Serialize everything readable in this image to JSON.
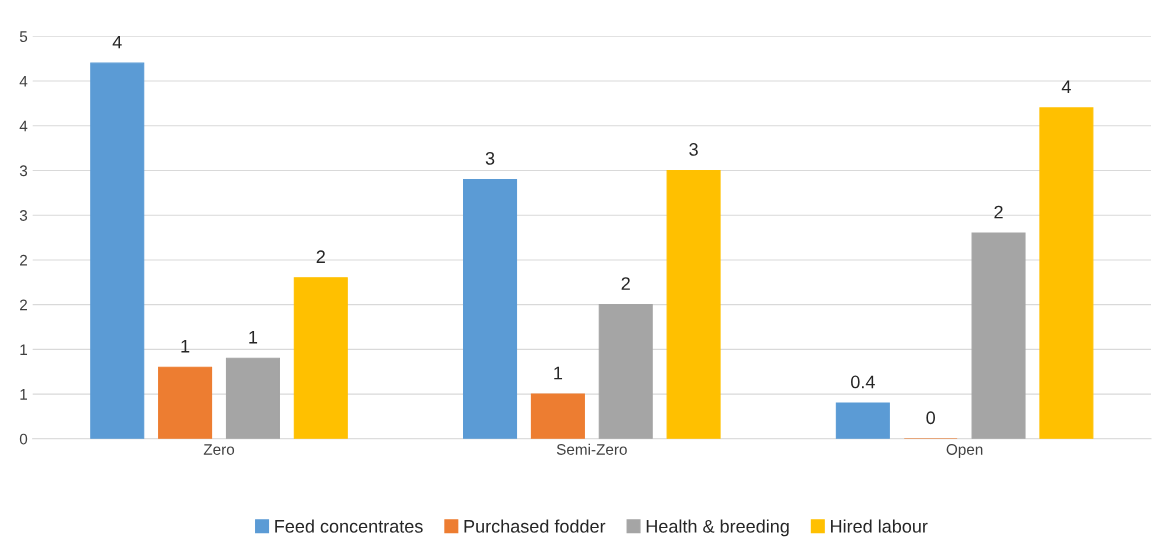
{
  "chart_data": {
    "type": "bar",
    "categories": [
      "Zero",
      "Semi-Zero",
      "Open"
    ],
    "series": [
      {
        "name": "Feed concentrates",
        "color": "#5b9bd5",
        "values": [
          4.2,
          2.9,
          0.4
        ],
        "value_labels": [
          "4",
          "3",
          "0.4"
        ]
      },
      {
        "name": "Purchased fodder",
        "color": "#ed7d31",
        "values": [
          0.8,
          0.5,
          0
        ],
        "value_labels": [
          "1",
          "1",
          "0"
        ]
      },
      {
        "name": "Health & breeding",
        "color": "#a5a5a5",
        "values": [
          0.9,
          1.5,
          2.3
        ],
        "value_labels": [
          "1",
          "2",
          "2"
        ]
      },
      {
        "name": "Hired labour",
        "color": "#ffc000",
        "values": [
          1.8,
          3.0,
          3.7
        ],
        "value_labels": [
          "2",
          "3",
          "4"
        ]
      }
    ],
    "ylim": [
      0,
      4.5
    ],
    "yticks": [
      0,
      {
        "value": 0.5,
        "label": "1"
      },
      1,
      {
        "value": 1.5,
        "label": "2"
      },
      2,
      {
        "value": 2.5,
        "label": "3"
      },
      3,
      {
        "value": 3.5,
        "label": "4"
      },
      4,
      {
        "value": 4.5,
        "label": "5"
      }
    ],
    "grid": "y",
    "legend": "bottom"
  }
}
